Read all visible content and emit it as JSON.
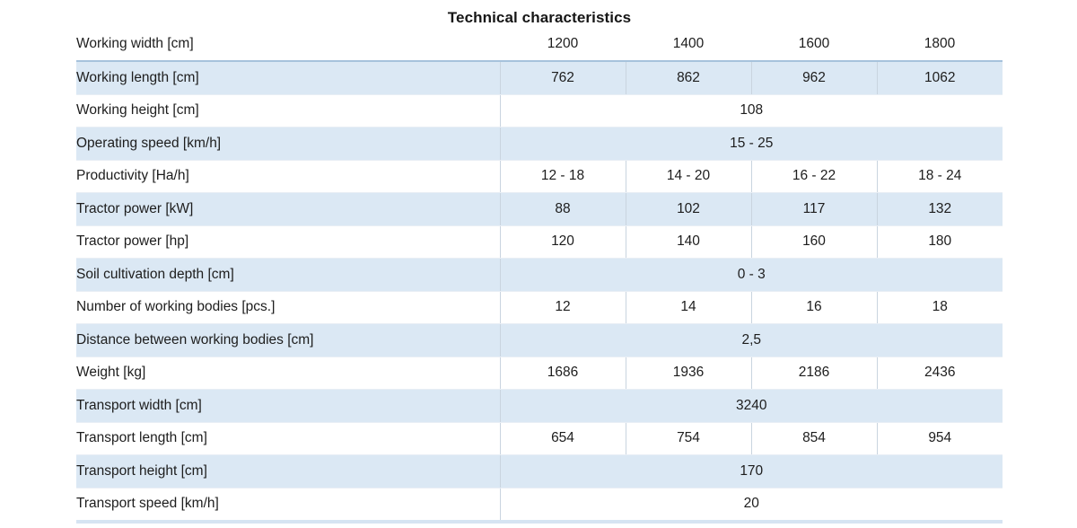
{
  "title": "Technical characteristics",
  "colors": {
    "shaded_row_bg": "#dbe8f4",
    "header_underline": "#a6c2dc",
    "column_divider": "#c9d4df",
    "row_hairline": "#e8eef5",
    "bottom_strip": "#d6e4f2",
    "text": "#1d1d1d"
  },
  "table": {
    "header": {
      "label": "Working width [cm]",
      "values": [
        "1200",
        "1400",
        "1600",
        "1800"
      ]
    },
    "rows": [
      {
        "label": "Working length [cm]",
        "merged": false,
        "shaded": true,
        "values": [
          "762",
          "862",
          "962",
          "1062"
        ]
      },
      {
        "label": "Working height [cm]",
        "merged": true,
        "shaded": false,
        "values": [
          "108"
        ]
      },
      {
        "label": "Operating speed [km/h]",
        "merged": true,
        "shaded": true,
        "values": [
          "15 - 25"
        ]
      },
      {
        "label": "Productivity [Ha/h]",
        "merged": false,
        "shaded": false,
        "values": [
          "12 - 18",
          "14 - 20",
          "16 - 22",
          "18 - 24"
        ]
      },
      {
        "label": "Tractor power [kW]",
        "merged": false,
        "shaded": true,
        "values": [
          "88",
          "102",
          "117",
          "132"
        ]
      },
      {
        "label": "Tractor power [hp]",
        "merged": false,
        "shaded": false,
        "values": [
          "120",
          "140",
          "160",
          "180"
        ]
      },
      {
        "label": "Soil cultivation depth [cm]",
        "merged": true,
        "shaded": true,
        "values": [
          "0 - 3"
        ]
      },
      {
        "label": "Number of working bodies [pcs.]",
        "merged": false,
        "shaded": false,
        "values": [
          "12",
          "14",
          "16",
          "18"
        ]
      },
      {
        "label": "Distance between working bodies [cm]",
        "merged": true,
        "shaded": true,
        "values": [
          "2,5"
        ]
      },
      {
        "label": "Weight [kg]",
        "merged": false,
        "shaded": false,
        "values": [
          "1686",
          "1936",
          "2186",
          "2436"
        ]
      },
      {
        "label": "Transport width [cm]",
        "merged": true,
        "shaded": true,
        "values": [
          "3240"
        ]
      },
      {
        "label": "Transport length [cm]",
        "merged": false,
        "shaded": false,
        "values": [
          "654",
          "754",
          "854",
          "954"
        ]
      },
      {
        "label": "Transport height [cm]",
        "merged": true,
        "shaded": true,
        "values": [
          "170"
        ]
      },
      {
        "label": "Transport speed [km/h]",
        "merged": true,
        "shaded": false,
        "values": [
          "20"
        ]
      }
    ]
  }
}
